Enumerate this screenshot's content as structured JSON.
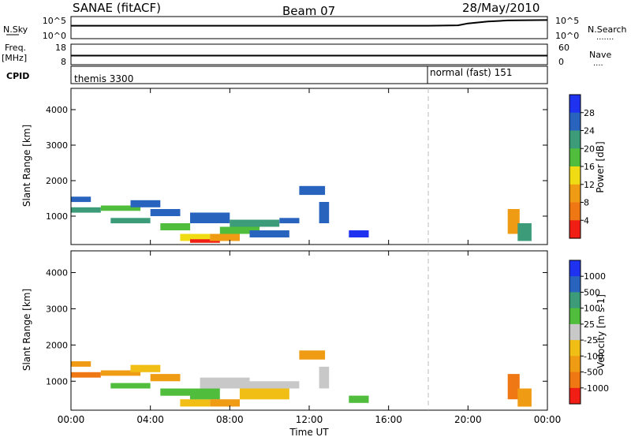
{
  "header": {
    "radar": "SANAE (fitACF)",
    "beam": "Beam 07",
    "date": "28/May/2010"
  },
  "side_labels": {
    "nsky": "N.Sky",
    "freq": "Freq.",
    "freq_unit": "[MHz]",
    "cpid": "CPID",
    "nsearch": "N.Search",
    "nsearch_dots": ".......",
    "nave": "Nave",
    "nave_dots": "...."
  },
  "cpid_labels": [
    "themis 3300",
    "normal (fast) 151"
  ],
  "colors": {
    "power": [
      "#1e32f0",
      "#2864be",
      "#3c9b78",
      "#50be3c",
      "#f0dc14",
      "#f09b14",
      "#f07814",
      "#f01e14"
    ],
    "velocity": [
      "#1e32f0",
      "#2864be",
      "#3c9b78",
      "#50be3c",
      "#c8c8c8",
      "#f0be14",
      "#f09b14",
      "#f07814",
      "#f01e14"
    ]
  },
  "chart_data": [
    {
      "type": "line",
      "panel": "noise",
      "ylabel_left": "N.Sky",
      "ylabel_right": "N.Search",
      "left_ticks": [
        "10^5",
        "10^0"
      ],
      "right_ticks": [
        "10^5",
        "10^0"
      ],
      "x": [
        "00:00",
        "02:00",
        "04:00",
        "06:00",
        "08:00",
        "10:00",
        "12:00",
        "14:00",
        "16:00",
        "18:00",
        "19:30",
        "20:00",
        "21:00",
        "22:00",
        "24:00"
      ],
      "series": [
        {
          "name": "N.Sky",
          "values": [
            3.0,
            3.0,
            3.0,
            3.0,
            3.0,
            3.0,
            3.0,
            3.0,
            3.0,
            3.0,
            3.1,
            3.6,
            4.1,
            4.4,
            4.5
          ]
        }
      ]
    },
    {
      "type": "line",
      "panel": "frequency",
      "ylabel_left": "Freq. [MHz]",
      "ylabel_right": "Nave",
      "left_ticks": [
        "18",
        "8"
      ],
      "right_ticks": [
        "60",
        "0"
      ],
      "x": [
        "00:00",
        "06:00",
        "12:00",
        "18:00",
        "24:00"
      ],
      "series": [
        {
          "name": "Freq.",
          "values": [
            12.3,
            12.3,
            12.3,
            12.3,
            12.3
          ]
        }
      ]
    },
    {
      "type": "heatmap",
      "panel": "power",
      "xlabel": "",
      "ylabel": "Slant Range [km]",
      "colorbar_label": "Power [dB]",
      "colorbar_ticks": [
        "4",
        "8",
        "12",
        "16",
        "20",
        "24",
        "28"
      ],
      "y_ticks": [
        "1000",
        "2000",
        "3000",
        "4000"
      ],
      "x_ticks": [
        "00:00",
        "04:00",
        "08:00",
        "12:00",
        "16:00",
        "20:00",
        "00:00"
      ],
      "xlim": [
        0,
        24
      ],
      "ylim": [
        200,
        4600
      ],
      "mode_change_time": 18.0,
      "patches": [
        {
          "t0": 0.0,
          "t1": 1.0,
          "r0": 1400,
          "r1": 1550,
          "level": 1
        },
        {
          "t0": 0.0,
          "t1": 1.5,
          "r0": 1100,
          "r1": 1250,
          "level": 2
        },
        {
          "t0": 1.5,
          "t1": 3.5,
          "r0": 1150,
          "r1": 1300,
          "level": 3
        },
        {
          "t0": 3.0,
          "t1": 4.5,
          "r0": 1250,
          "r1": 1450,
          "level": 1
        },
        {
          "t0": 2.0,
          "t1": 4.0,
          "r0": 800,
          "r1": 950,
          "level": 2
        },
        {
          "t0": 4.0,
          "t1": 5.5,
          "r0": 1000,
          "r1": 1200,
          "level": 1
        },
        {
          "t0": 4.5,
          "t1": 6.0,
          "r0": 600,
          "r1": 800,
          "level": 3
        },
        {
          "t0": 5.5,
          "t1": 7.0,
          "r0": 300,
          "r1": 500,
          "level": 4
        },
        {
          "t0": 6.0,
          "t1": 7.5,
          "r0": 250,
          "r1": 350,
          "level": 7
        },
        {
          "t0": 7.0,
          "t1": 8.5,
          "r0": 300,
          "r1": 500,
          "level": 5
        },
        {
          "t0": 6.0,
          "t1": 8.0,
          "r0": 800,
          "r1": 1100,
          "level": 1
        },
        {
          "t0": 7.5,
          "t1": 9.5,
          "r0": 500,
          "r1": 700,
          "level": 3
        },
        {
          "t0": 8.0,
          "t1": 10.5,
          "r0": 700,
          "r1": 900,
          "level": 2
        },
        {
          "t0": 9.0,
          "t1": 11.0,
          "r0": 400,
          "r1": 600,
          "level": 1
        },
        {
          "t0": 10.5,
          "t1": 11.5,
          "r0": 800,
          "r1": 950,
          "level": 1
        },
        {
          "t0": 11.5,
          "t1": 12.8,
          "r0": 1600,
          "r1": 1850,
          "level": 1
        },
        {
          "t0": 12.5,
          "t1": 13.0,
          "r0": 800,
          "r1": 1400,
          "level": 1
        },
        {
          "t0": 14.0,
          "t1": 15.0,
          "r0": 400,
          "r1": 600,
          "level": 0
        },
        {
          "t0": 22.0,
          "t1": 22.6,
          "r0": 500,
          "r1": 1200,
          "level": 5
        },
        {
          "t0": 22.5,
          "t1": 23.2,
          "r0": 300,
          "r1": 800,
          "level": 2
        }
      ]
    },
    {
      "type": "heatmap",
      "panel": "velocity",
      "xlabel": "Time UT",
      "ylabel": "Slant Range [km]",
      "colorbar_label": "Velocity [m s-1]",
      "colorbar_ticks": [
        "1000",
        "500",
        "100",
        "25",
        "-25",
        "-100",
        "-500",
        "-1000"
      ],
      "y_ticks": [
        "1000",
        "2000",
        "3000",
        "4000"
      ],
      "x_ticks": [
        "00:00",
        "04:00",
        "08:00",
        "12:00",
        "16:00",
        "20:00",
        "00:00"
      ],
      "xlim": [
        0,
        24
      ],
      "ylim": [
        200,
        4600
      ],
      "mode_change_time": 18.0,
      "patches": [
        {
          "t0": 0.0,
          "t1": 1.0,
          "r0": 1400,
          "r1": 1550,
          "level": 6
        },
        {
          "t0": 0.0,
          "t1": 1.5,
          "r0": 1100,
          "r1": 1250,
          "level": 7
        },
        {
          "t0": 1.5,
          "t1": 3.5,
          "r0": 1150,
          "r1": 1300,
          "level": 6
        },
        {
          "t0": 3.0,
          "t1": 4.5,
          "r0": 1250,
          "r1": 1450,
          "level": 5
        },
        {
          "t0": 2.0,
          "t1": 4.0,
          "r0": 800,
          "r1": 950,
          "level": 3
        },
        {
          "t0": 4.0,
          "t1": 5.5,
          "r0": 1000,
          "r1": 1200,
          "level": 6
        },
        {
          "t0": 4.5,
          "t1": 6.0,
          "r0": 600,
          "r1": 800,
          "level": 3
        },
        {
          "t0": 5.5,
          "t1": 7.0,
          "r0": 300,
          "r1": 500,
          "level": 5
        },
        {
          "t0": 6.0,
          "t1": 7.5,
          "r0": 500,
          "r1": 800,
          "level": 3
        },
        {
          "t0": 7.0,
          "t1": 8.5,
          "r0": 300,
          "r1": 500,
          "level": 6
        },
        {
          "t0": 6.5,
          "t1": 9.0,
          "r0": 800,
          "r1": 1100,
          "level": 4
        },
        {
          "t0": 8.5,
          "t1": 11.0,
          "r0": 500,
          "r1": 800,
          "level": 5
        },
        {
          "t0": 9.0,
          "t1": 11.5,
          "r0": 800,
          "r1": 1000,
          "level": 4
        },
        {
          "t0": 11.5,
          "t1": 12.8,
          "r0": 1600,
          "r1": 1850,
          "level": 6
        },
        {
          "t0": 12.5,
          "t1": 13.0,
          "r0": 800,
          "r1": 1400,
          "level": 4
        },
        {
          "t0": 14.0,
          "t1": 15.0,
          "r0": 400,
          "r1": 600,
          "level": 3
        },
        {
          "t0": 22.0,
          "t1": 22.6,
          "r0": 500,
          "r1": 1200,
          "level": 7
        },
        {
          "t0": 22.5,
          "t1": 23.2,
          "r0": 300,
          "r1": 800,
          "level": 6
        }
      ]
    }
  ]
}
